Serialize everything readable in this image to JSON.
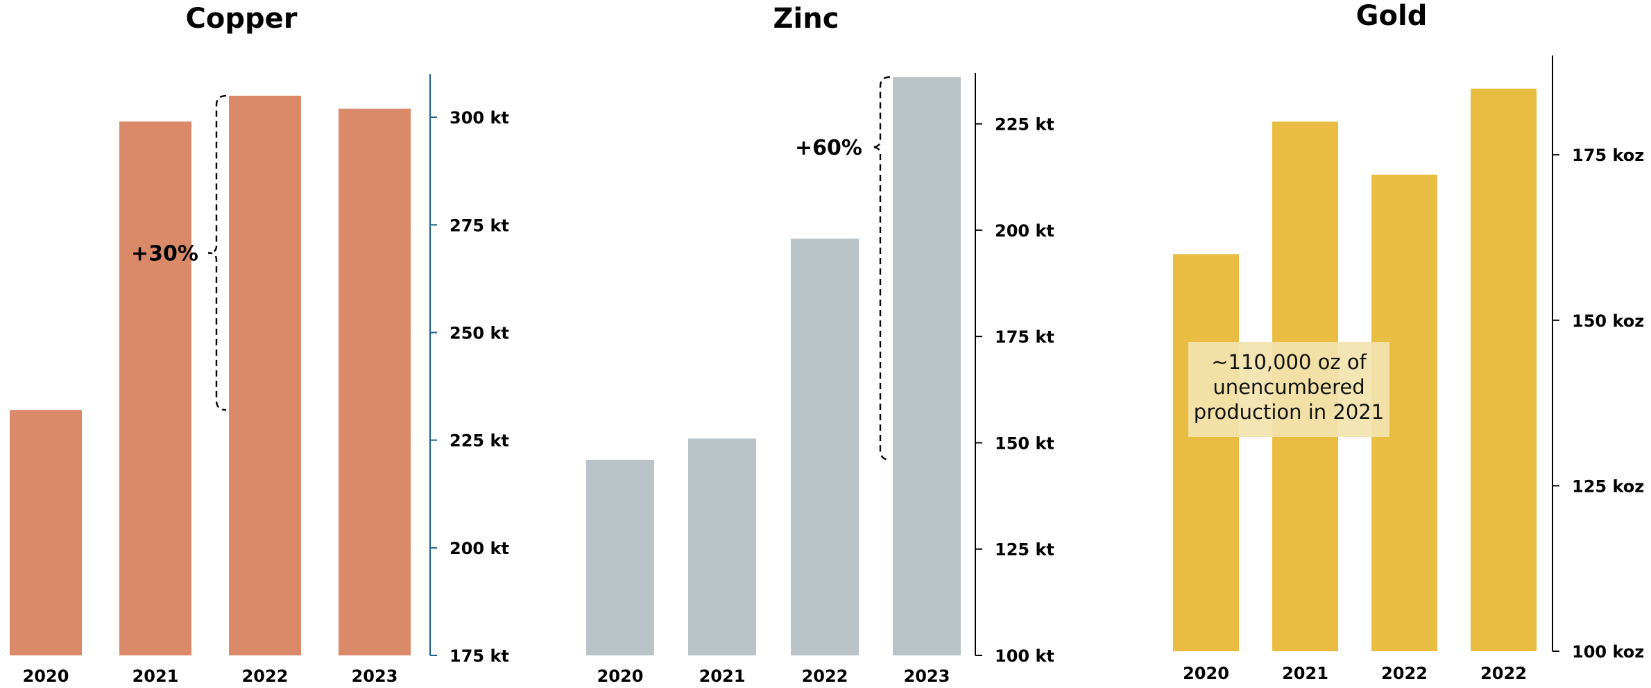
{
  "chart_data": [
    {
      "type": "bar",
      "title": "Copper",
      "categories": [
        "2020",
        "2021",
        "2022",
        "2023"
      ],
      "values": [
        232,
        299,
        305,
        302
      ],
      "ylim": [
        175,
        310
      ],
      "yticks": [
        175,
        200,
        225,
        250,
        275,
        300
      ],
      "tick_labels": [
        "175 kt",
        "200 kt",
        "225 kt",
        "250 kt",
        "275 kt",
        "300 kt"
      ],
      "axis_side": "right",
      "grid": false,
      "color": "#DA8A68",
      "axis_color": "#1F5F8B",
      "annotation": {
        "text": "+30%",
        "from": "2020",
        "to": "2022",
        "bracket_side": "left-of-2022"
      }
    },
    {
      "type": "bar",
      "title": "Zinc",
      "categories": [
        "2020",
        "2021",
        "2022",
        "2023"
      ],
      "values": [
        146,
        151,
        198,
        236
      ],
      "ylim": [
        100,
        237
      ],
      "yticks": [
        100,
        125,
        150,
        175,
        200,
        225
      ],
      "tick_labels": [
        "100 kt",
        "125 kt",
        "150 kt",
        "175 kt",
        "200 kt",
        "225 kt"
      ],
      "axis_side": "right",
      "grid": false,
      "color": "#BAC3C8",
      "axis_color": "#000000",
      "annotation": {
        "text": "+60%",
        "from": "2020",
        "to": "2023",
        "bracket_side": "left-of-2023"
      }
    },
    {
      "type": "bar",
      "title": "Gold",
      "categories": [
        "2020",
        "2021",
        "2022",
        "2022"
      ],
      "values": [
        160,
        180,
        172,
        185
      ],
      "ylim": [
        100,
        190
      ],
      "yticks": [
        100,
        125,
        150,
        175
      ],
      "tick_labels": [
        "100 koz",
        "125 koz",
        "150 koz",
        "175 koz"
      ],
      "axis_side": "right",
      "grid": false,
      "color": "#E8BD42",
      "axis_color": "#000000",
      "textbox": {
        "lines": [
          "~110,000 oz of",
          "unencumbered",
          "production in 2021"
        ],
        "background": "#F3E3AF"
      }
    }
  ]
}
